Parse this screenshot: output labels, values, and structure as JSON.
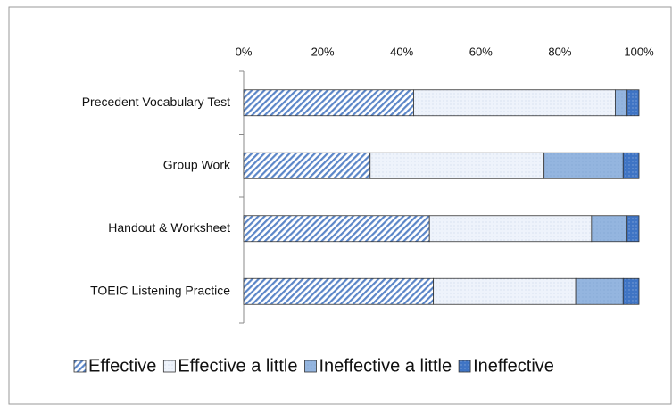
{
  "chart_data": {
    "type": "stacked_barh",
    "categories": [
      "Precedent Vocabulary Test",
      "Group Work",
      "Handout & Worksheet",
      "TOEIC Listening Practice"
    ],
    "series": [
      {
        "name": "Effective",
        "color": "#a9c4e8",
        "values": [
          43,
          32,
          47,
          48
        ]
      },
      {
        "name": "Effective a little",
        "color": "#e6eef9",
        "values": [
          51,
          44,
          41,
          36
        ]
      },
      {
        "name": "Ineffective a little",
        "color": "#94b5df",
        "values": [
          3,
          20,
          9,
          12
        ]
      },
      {
        "name": "Ineffective",
        "color": "#3f74c4",
        "values": [
          3,
          4,
          3,
          4
        ]
      }
    ],
    "xlim": [
      0,
      100
    ],
    "xticks": [
      {
        "value": 0,
        "label": "0%"
      },
      {
        "value": 20,
        "label": "20%"
      },
      {
        "value": 40,
        "label": "40%"
      },
      {
        "value": 60,
        "label": "60%"
      },
      {
        "value": 80,
        "label": "80%"
      },
      {
        "value": 100,
        "label": "100%"
      }
    ],
    "legend": "bottom"
  }
}
